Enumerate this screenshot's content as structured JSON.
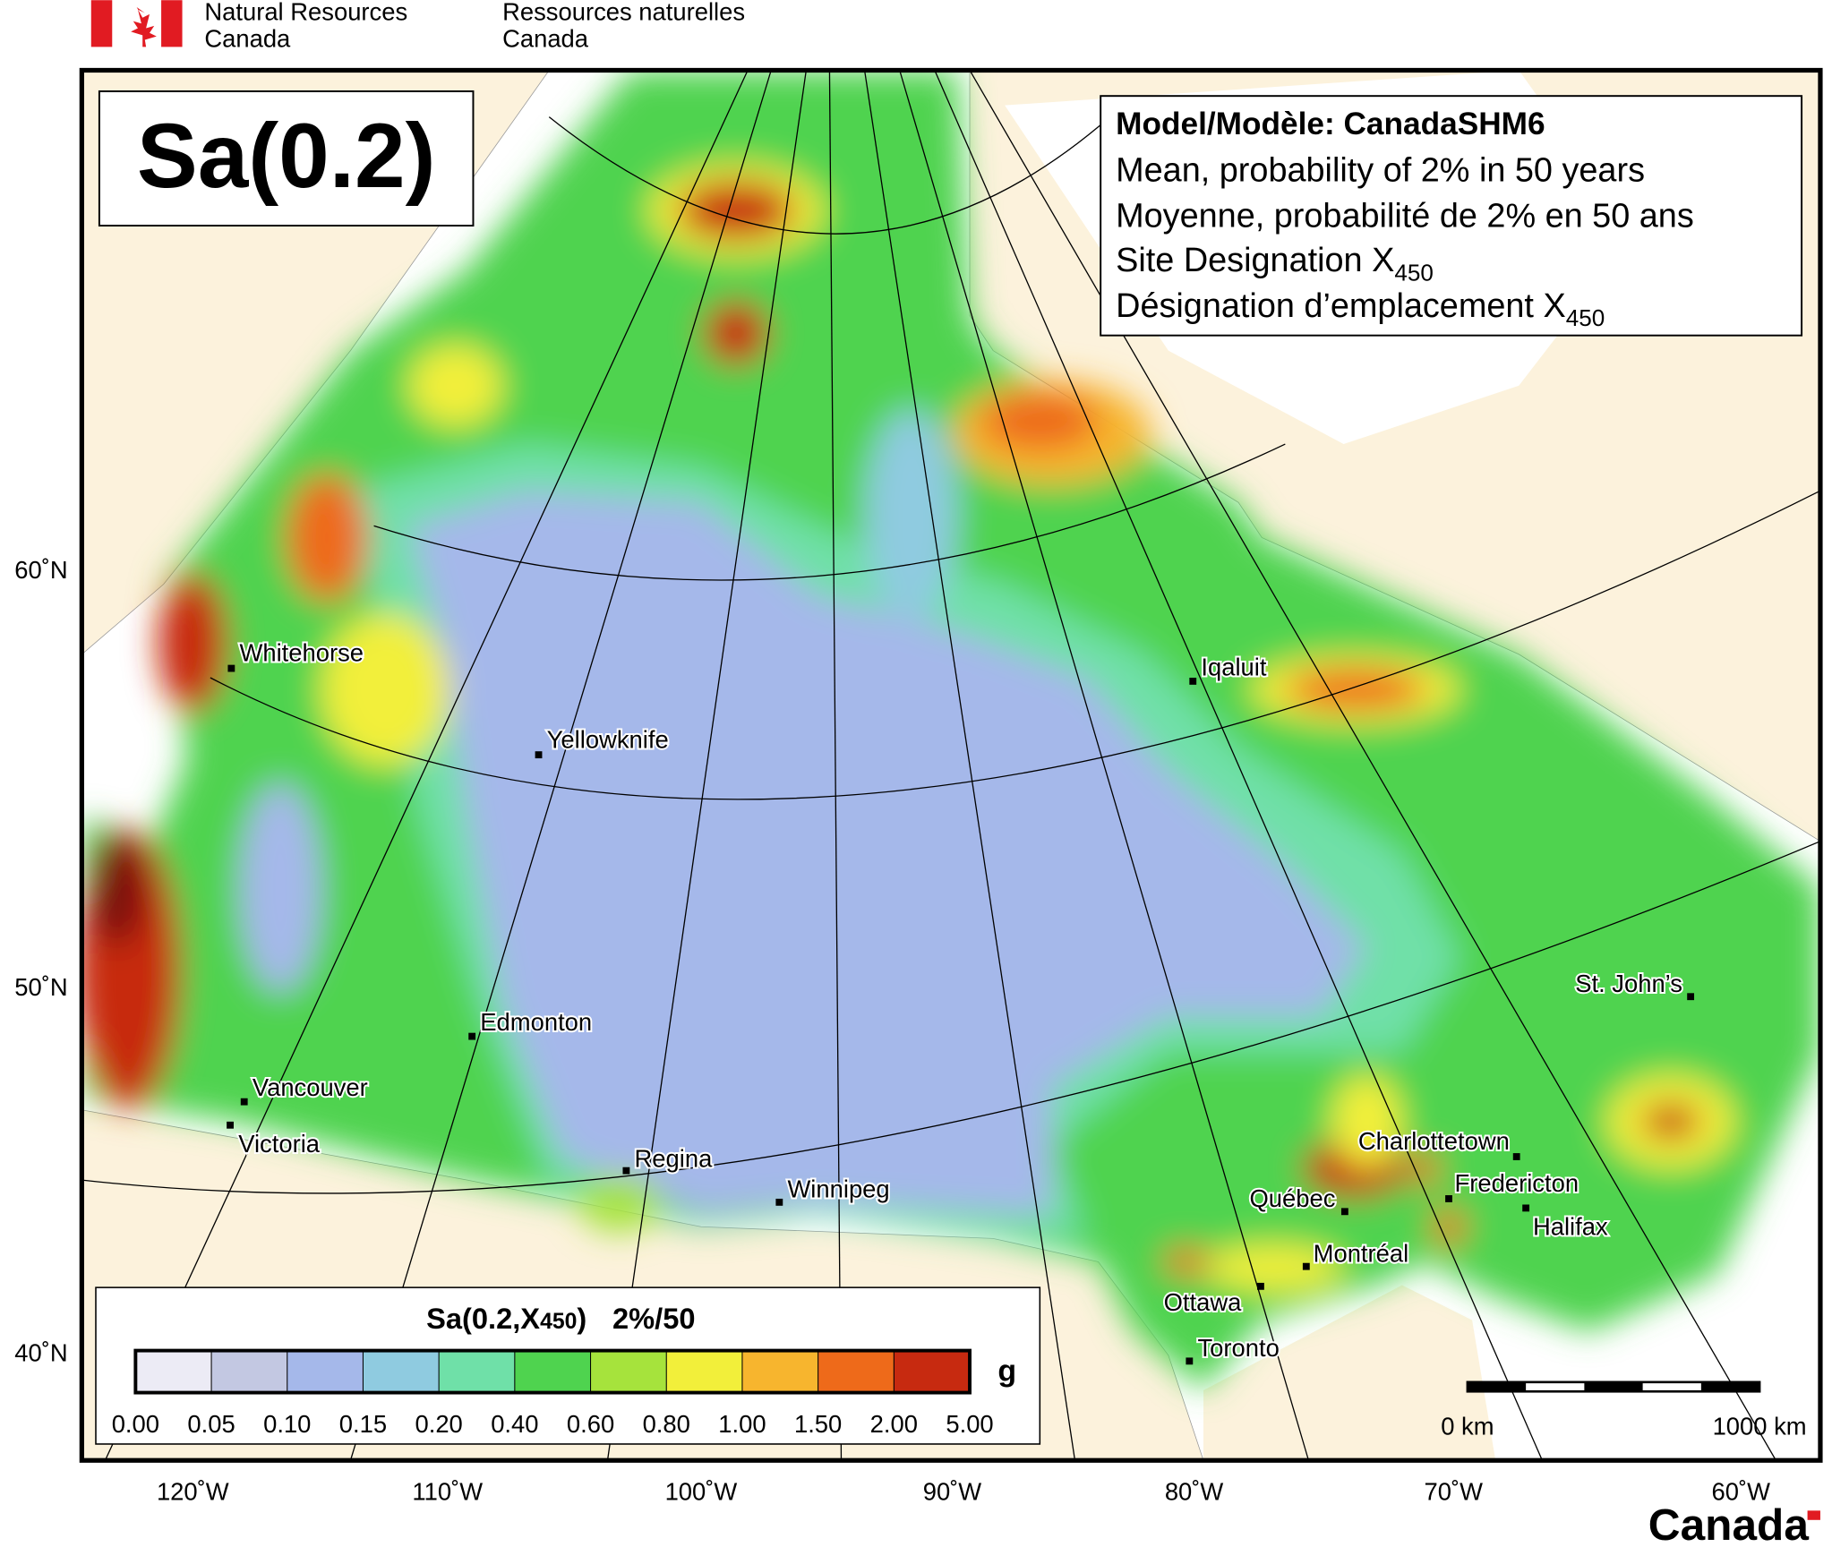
{
  "header": {
    "org_en_1": "Natural Resources",
    "org_en_2": "Canada",
    "org_fr_1": "Ressources naturelles",
    "org_fr_2": "Canada"
  },
  "map": {
    "title": "Sa(0.2)",
    "info": {
      "model": "Model/Modèle: CanadaSHM6",
      "line_en": "Mean, probability of 2% in 50 years",
      "line_fr": "Moyenne, probabilité de 2% en 50 ans",
      "site_en": {
        "text": "Site Designation X",
        "sub": "450"
      },
      "site_fr": {
        "text": "Désignation d’emplacement X",
        "sub": "450"
      }
    },
    "cities": [
      "Whitehorse",
      "Yellowknife",
      "Iqaluit",
      "Edmonton",
      "Vancouver",
      "Victoria",
      "Regina",
      "Winnipeg",
      "St. John’s",
      "Charlottetown",
      "Québec",
      "Fredericton",
      "Halifax",
      "Montréal",
      "Ottawa",
      "Toronto"
    ],
    "lat_labels": [
      "60˚N",
      "50˚N",
      "40˚N"
    ],
    "lon_labels": [
      "120˚W",
      "110˚W",
      "100˚W",
      "90˚W",
      "80˚W",
      "70˚W",
      "60˚W"
    ],
    "scale_bar": {
      "start": "0 km",
      "end": "1000 km"
    },
    "legend": {
      "title_a": "Sa(0.2,X",
      "title_sub": "450",
      "title_b": ")",
      "title_c": "2%/50",
      "unit": "g",
      "labels": [
        "0.00",
        "0.05",
        "0.10",
        "0.15",
        "0.20",
        "0.40",
        "0.60",
        "0.80",
        "1.00",
        "1.50",
        "2.00",
        "5.00"
      ],
      "colors": [
        "#ecebf5",
        "#c3c8e2",
        "#a5b8ea",
        "#8fcbe0",
        "#6fe0a8",
        "#4fd34f",
        "#a6e33c",
        "#f2ef3a",
        "#f7b52e",
        "#ee6a1a",
        "#c72a10",
        "#7a0c08"
      ]
    }
  },
  "footer": {
    "wordmark": "Canada"
  }
}
